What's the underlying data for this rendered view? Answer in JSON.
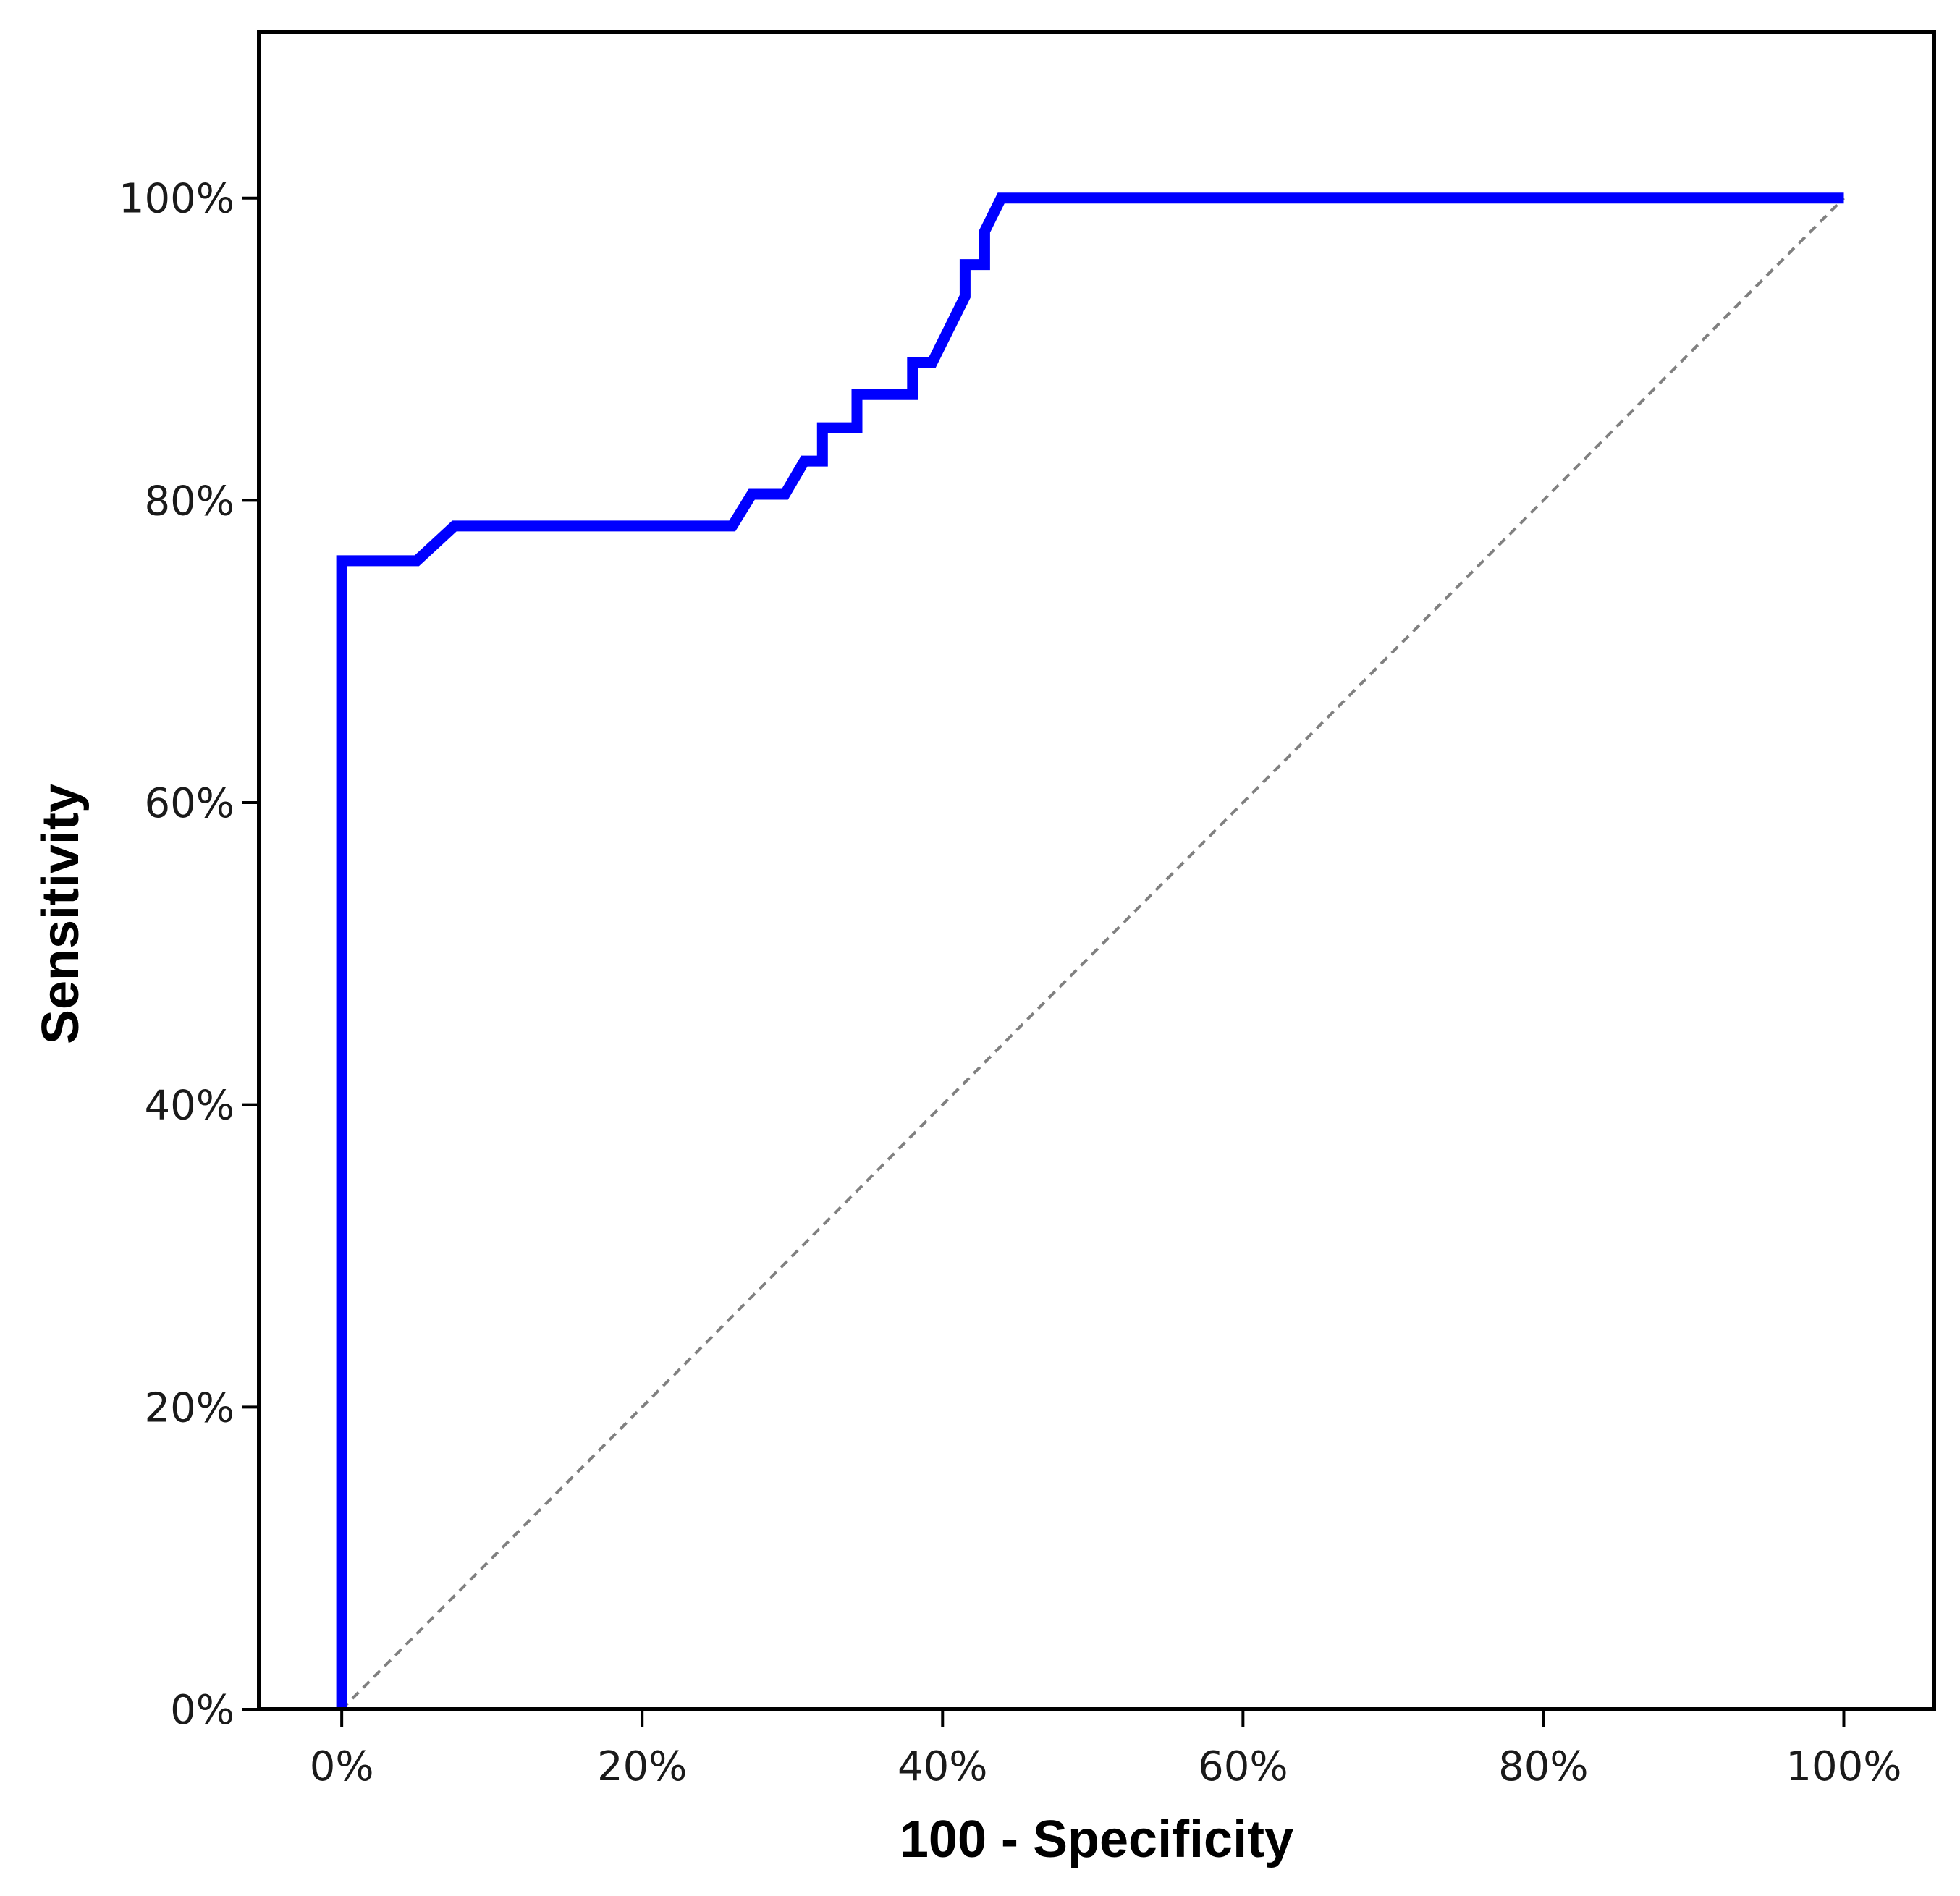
{
  "chart_data": {
    "type": "line",
    "title": "",
    "xlabel": "100 - Specificity",
    "ylabel": "Sensitivity",
    "xlim": [
      -5.5,
      106
    ],
    "ylim": [
      0,
      111
    ],
    "x_ticks": [
      0,
      20,
      40,
      60,
      80,
      100
    ],
    "x_tick_labels": [
      "0%",
      "20%",
      "40%",
      "60%",
      "80%",
      "100%"
    ],
    "y_ticks": [
      0,
      20,
      40,
      60,
      80,
      100
    ],
    "y_tick_labels": [
      "0%",
      "20%",
      "40%",
      "60%",
      "80%",
      "100%"
    ],
    "grid": false,
    "legend": "none",
    "series": [
      {
        "style": "solid",
        "color": "#0000ff",
        "x": [
          0,
          0,
          5,
          7.5,
          26,
          27.3,
          29.5,
          30.8,
          32,
          32,
          34.3,
          34.3,
          38,
          38,
          39.3,
          41.5,
          41.5,
          42.8,
          42.8,
          43.9,
          100
        ],
        "y": [
          0,
          76,
          76,
          78.3,
          78.3,
          80.4,
          80.4,
          82.6,
          82.6,
          84.8,
          84.8,
          87,
          87,
          89.1,
          89.1,
          93.5,
          95.6,
          95.6,
          97.8,
          100,
          100
        ]
      },
      {
        "style": "dashed",
        "color": "#808080",
        "x": [
          0,
          100
        ],
        "y": [
          0,
          100
        ]
      }
    ]
  }
}
